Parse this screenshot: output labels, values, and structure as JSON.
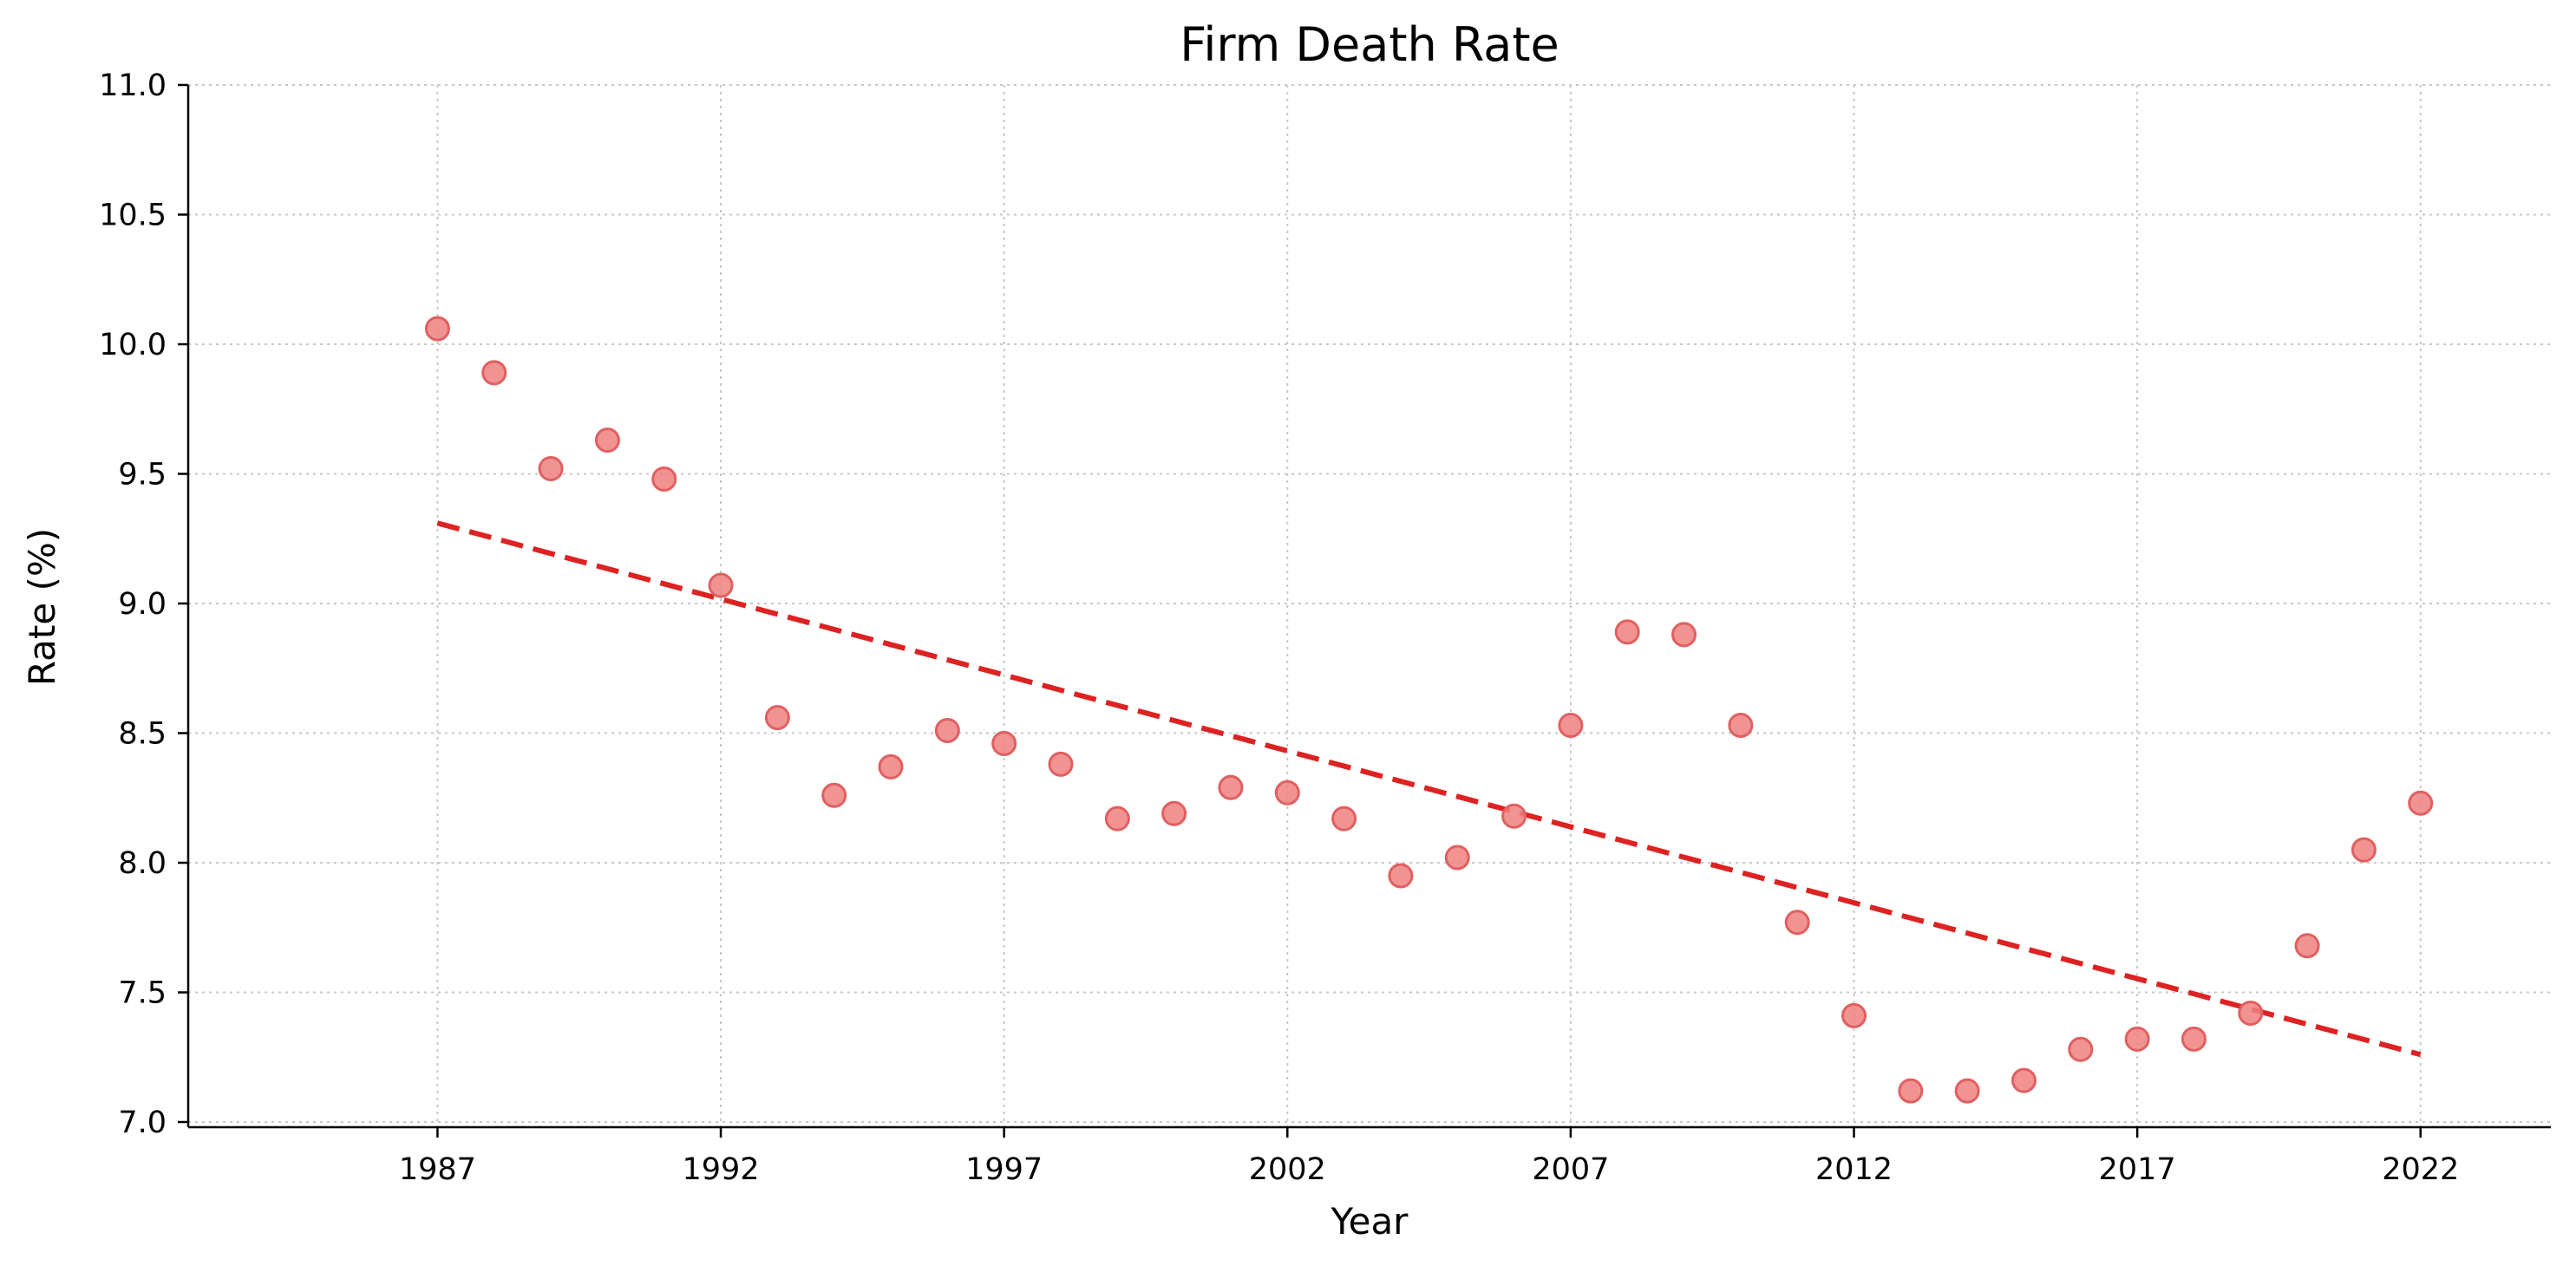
{
  "chart_data": {
    "type": "scatter",
    "title": "Firm Death Rate",
    "xlabel": "Year",
    "ylabel": "Rate (%)",
    "xlim": [
      1982.6,
      2024.3
    ],
    "ylim": [
      6.98,
      11.0
    ],
    "xticks": [
      1987,
      1992,
      1997,
      2002,
      2007,
      2012,
      2017,
      2022
    ],
    "yticks": [
      7.0,
      7.5,
      8.0,
      8.5,
      9.0,
      9.5,
      10.0,
      10.5,
      11.0
    ],
    "ytick_labels": [
      "7.0",
      "7.5",
      "8.0",
      "8.5",
      "9.0",
      "9.5",
      "10.0",
      "10.5",
      "11.0"
    ],
    "grid": true,
    "legend": "none",
    "colors": {
      "points": "#f08080",
      "point_edge": "#e06060",
      "trend": "#dd2222"
    },
    "series": [
      {
        "kind": "scatter",
        "x": [
          1987,
          1988,
          1989,
          1990,
          1991,
          1992,
          1993,
          1994,
          1995,
          1996,
          1997,
          1998,
          1999,
          2000,
          2001,
          2002,
          2003,
          2004,
          2005,
          2006,
          2007,
          2008,
          2009,
          2010,
          2011,
          2012,
          2013,
          2014,
          2015,
          2016,
          2017,
          2018,
          2019,
          2020,
          2021,
          2022
        ],
        "y": [
          10.06,
          9.89,
          9.52,
          9.63,
          9.48,
          9.07,
          8.56,
          8.26,
          8.37,
          8.51,
          8.46,
          8.38,
          8.17,
          8.19,
          8.29,
          8.27,
          8.17,
          7.95,
          8.02,
          8.18,
          8.53,
          8.89,
          8.88,
          8.53,
          7.77,
          7.41,
          7.12,
          7.12,
          7.16,
          7.28,
          7.32,
          7.32,
          7.42,
          7.68,
          8.05,
          8.23
        ]
      },
      {
        "kind": "trend",
        "x": [
          1987,
          2022
        ],
        "y": [
          9.31,
          7.26
        ]
      }
    ]
  }
}
